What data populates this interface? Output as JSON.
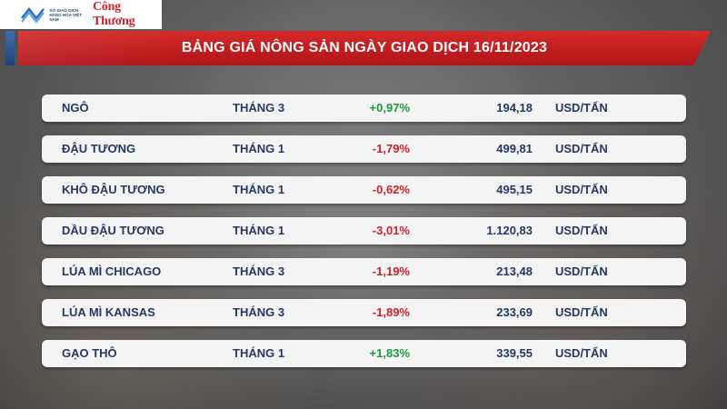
{
  "header": {
    "logo_small_text": "SỞ GIAO DỊCH HÀNG HÓA VIỆT NAM",
    "logo_brand": "Công Thương",
    "title": "BẢNG GIÁ NÔNG SẢN NGÀY GIAO DỊCH 16/11/2023"
  },
  "colors": {
    "header_red": "#c41e22",
    "positive": "#1a9a3a",
    "negative": "#d0202a",
    "text": "#243a63"
  },
  "rows": [
    {
      "name": "NGÔ",
      "month": "THÁNG 3",
      "change": "+0,97%",
      "price": "194,18",
      "unit": "USD/TẤN",
      "trend": "up"
    },
    {
      "name": "ĐẬU TƯƠNG",
      "month": "THÁNG 1",
      "change": "-1,79%",
      "price": "499,81",
      "unit": "USD/TẤN",
      "trend": "down"
    },
    {
      "name": "KHÔ ĐẬU TƯƠNG",
      "month": "THÁNG 1",
      "change": "-0,62%",
      "price": "495,15",
      "unit": "USD/TẤN",
      "trend": "down"
    },
    {
      "name": "DẦU ĐẬU TƯƠNG",
      "month": "THÁNG 1",
      "change": "-3,01%",
      "price": "1.120,83",
      "unit": "USD/TẤN",
      "trend": "down"
    },
    {
      "name": "LÚA MÌ CHICAGO",
      "month": "THÁNG 3",
      "change": "-1,19%",
      "price": "213,48",
      "unit": "USD/TẤN",
      "trend": "down"
    },
    {
      "name": "LÚA MÌ KANSAS",
      "month": "THÁNG 3",
      "change": "-1,89%",
      "price": "233,69",
      "unit": "USD/TẤN",
      "trend": "down"
    },
    {
      "name": "GẠO THÔ",
      "month": "THÁNG 1",
      "change": "+1,83%",
      "price": "339,55",
      "unit": "USD/TẤN",
      "trend": "up"
    }
  ]
}
